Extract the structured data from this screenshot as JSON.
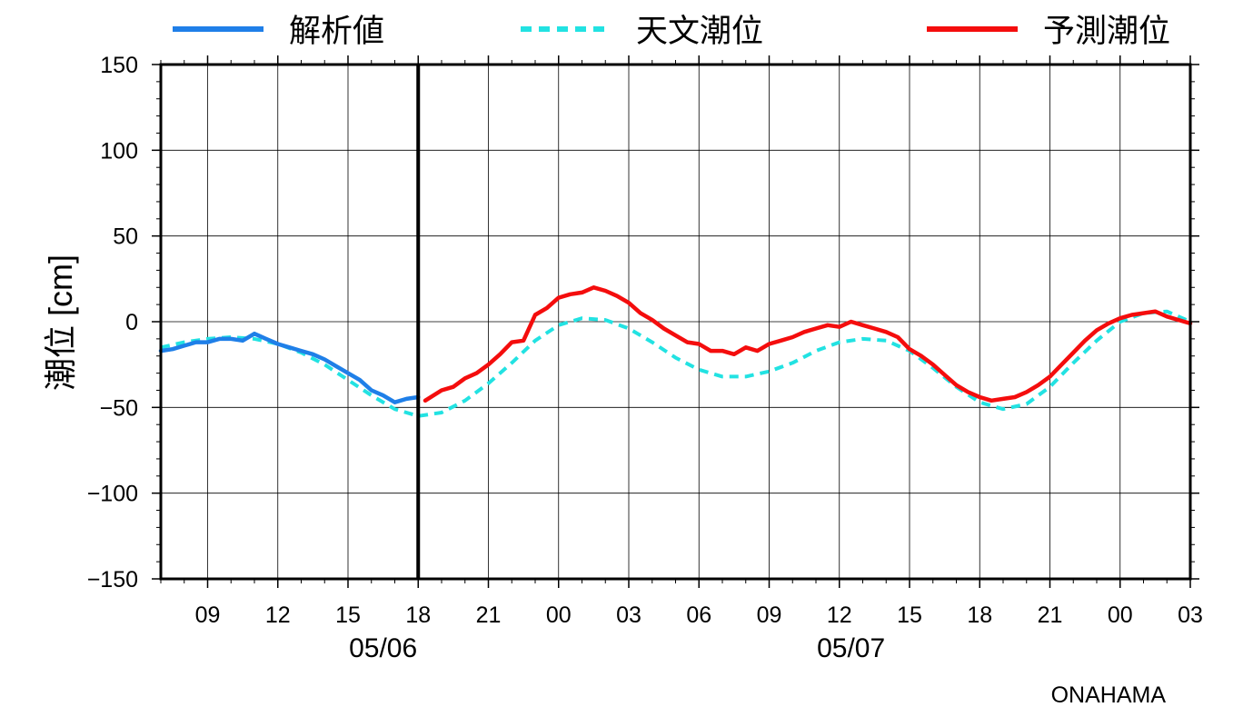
{
  "station": "ONAHAMA",
  "chart_data": {
    "type": "line",
    "ylabel": "潮位 [cm]",
    "xlabel": "",
    "ylim": [
      -150,
      150
    ],
    "yticks": [
      -150,
      -100,
      -50,
      0,
      50,
      100,
      150
    ],
    "ytick_labels": [
      "−150",
      "−100",
      "−50",
      "0",
      "50",
      "100",
      "150"
    ],
    "xlim_hours": [
      7,
      51
    ],
    "xticks": [
      {
        "h": 9,
        "label": "09"
      },
      {
        "h": 12,
        "label": "12"
      },
      {
        "h": 15,
        "label": "15"
      },
      {
        "h": 18,
        "label": "18"
      },
      {
        "h": 21,
        "label": "21"
      },
      {
        "h": 24,
        "label": "00"
      },
      {
        "h": 27,
        "label": "03"
      },
      {
        "h": 30,
        "label": "06"
      },
      {
        "h": 33,
        "label": "09"
      },
      {
        "h": 36,
        "label": "12"
      },
      {
        "h": 39,
        "label": "15"
      },
      {
        "h": 42,
        "label": "18"
      },
      {
        "h": 45,
        "label": "21"
      },
      {
        "h": 48,
        "label": "00"
      },
      {
        "h": 51,
        "label": "03"
      }
    ],
    "date_labels": [
      {
        "h": 16.5,
        "label": "05/06"
      },
      {
        "h": 36.5,
        "label": "05/07"
      }
    ],
    "now_marker_h": 18,
    "grid": true,
    "legend": "top",
    "series": [
      {
        "name": "解析値",
        "color": "#1f7fe8",
        "style": "solid",
        "points": [
          [
            7,
            -17
          ],
          [
            7.5,
            -16
          ],
          [
            8,
            -14
          ],
          [
            8.5,
            -12
          ],
          [
            9,
            -12
          ],
          [
            9.5,
            -10
          ],
          [
            10,
            -10
          ],
          [
            10.5,
            -11
          ],
          [
            11,
            -7
          ],
          [
            11.5,
            -10
          ],
          [
            12,
            -13
          ],
          [
            12.5,
            -15
          ],
          [
            13,
            -17
          ],
          [
            13.5,
            -19
          ],
          [
            14,
            -22
          ],
          [
            14.5,
            -26
          ],
          [
            15,
            -30
          ],
          [
            15.5,
            -34
          ],
          [
            16,
            -40
          ],
          [
            16.5,
            -43
          ],
          [
            17,
            -47
          ],
          [
            17.5,
            -45
          ],
          [
            18,
            -44
          ]
        ]
      },
      {
        "name": "天文潮位",
        "color": "#22e2e2",
        "style": "dashed",
        "points": [
          [
            7,
            -15
          ],
          [
            8,
            -12
          ],
          [
            9,
            -10
          ],
          [
            10,
            -9
          ],
          [
            11,
            -10
          ],
          [
            12,
            -13
          ],
          [
            13,
            -18
          ],
          [
            14,
            -25
          ],
          [
            15,
            -34
          ],
          [
            16,
            -43
          ],
          [
            17,
            -51
          ],
          [
            18,
            -55
          ],
          [
            19,
            -53
          ],
          [
            20,
            -46
          ],
          [
            21,
            -36
          ],
          [
            22,
            -24
          ],
          [
            23,
            -11
          ],
          [
            24,
            -2
          ],
          [
            25,
            2
          ],
          [
            26,
            1
          ],
          [
            27,
            -4
          ],
          [
            28,
            -12
          ],
          [
            29,
            -21
          ],
          [
            30,
            -28
          ],
          [
            31,
            -32
          ],
          [
            32,
            -32
          ],
          [
            33,
            -29
          ],
          [
            34,
            -24
          ],
          [
            35,
            -17
          ],
          [
            36,
            -12
          ],
          [
            37,
            -10
          ],
          [
            38,
            -11
          ],
          [
            39,
            -17
          ],
          [
            40,
            -27
          ],
          [
            41,
            -38
          ],
          [
            42,
            -47
          ],
          [
            43,
            -51
          ],
          [
            44,
            -48
          ],
          [
            45,
            -38
          ],
          [
            46,
            -24
          ],
          [
            47,
            -11
          ],
          [
            48,
            0
          ],
          [
            49,
            5
          ],
          [
            50,
            6
          ],
          [
            51,
            0
          ]
        ]
      },
      {
        "name": "予測潮位",
        "color": "#f40d0d",
        "style": "solid",
        "points": [
          [
            18.3,
            -46
          ],
          [
            19,
            -40
          ],
          [
            19.5,
            -38
          ],
          [
            20,
            -33
          ],
          [
            20.5,
            -30
          ],
          [
            21,
            -25
          ],
          [
            21.5,
            -19
          ],
          [
            22,
            -12
          ],
          [
            22.5,
            -11
          ],
          [
            23,
            4
          ],
          [
            23.5,
            8
          ],
          [
            24,
            14
          ],
          [
            24.5,
            16
          ],
          [
            25,
            17
          ],
          [
            25.5,
            20
          ],
          [
            26,
            18
          ],
          [
            26.5,
            15
          ],
          [
            27,
            11
          ],
          [
            27.5,
            5
          ],
          [
            28,
            1
          ],
          [
            28.5,
            -4
          ],
          [
            29,
            -8
          ],
          [
            29.5,
            -12
          ],
          [
            30,
            -13
          ],
          [
            30.5,
            -17
          ],
          [
            31,
            -17
          ],
          [
            31.5,
            -19
          ],
          [
            32,
            -15
          ],
          [
            32.5,
            -17
          ],
          [
            33,
            -13
          ],
          [
            33.5,
            -11
          ],
          [
            34,
            -9
          ],
          [
            34.5,
            -6
          ],
          [
            35,
            -4
          ],
          [
            35.5,
            -2
          ],
          [
            36,
            -3
          ],
          [
            36.5,
            0
          ],
          [
            37,
            -2
          ],
          [
            37.5,
            -4
          ],
          [
            38,
            -6
          ],
          [
            38.5,
            -9
          ],
          [
            39,
            -16
          ],
          [
            39.5,
            -20
          ],
          [
            40,
            -25
          ],
          [
            40.5,
            -31
          ],
          [
            41,
            -37
          ],
          [
            41.5,
            -41
          ],
          [
            42,
            -44
          ],
          [
            42.5,
            -46
          ],
          [
            43,
            -45
          ],
          [
            43.5,
            -44
          ],
          [
            44,
            -41
          ],
          [
            44.5,
            -37
          ],
          [
            45,
            -32
          ],
          [
            45.5,
            -25
          ],
          [
            46,
            -18
          ],
          [
            46.5,
            -11
          ],
          [
            47,
            -5
          ],
          [
            47.5,
            -1
          ],
          [
            48,
            2
          ],
          [
            48.5,
            4
          ],
          [
            49,
            5
          ],
          [
            49.5,
            6
          ],
          [
            50,
            3
          ],
          [
            50.5,
            1
          ],
          [
            51,
            -1
          ]
        ]
      }
    ]
  }
}
